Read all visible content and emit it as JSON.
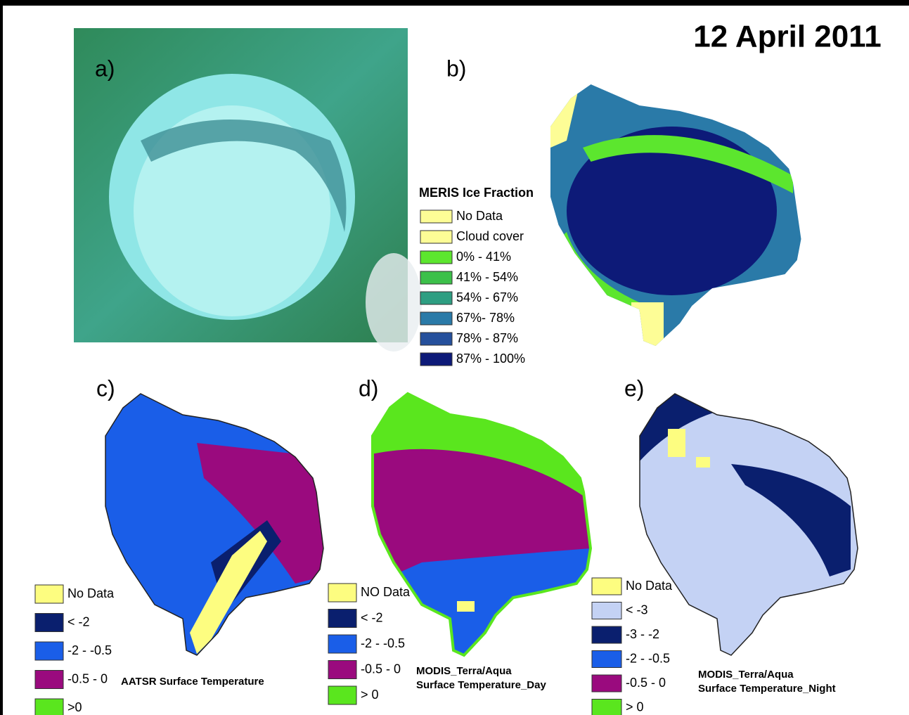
{
  "title": "12 April 2011",
  "panels": [
    {
      "label": "a)"
    },
    {
      "label": "b)",
      "legend": {
        "title": "MERIS Ice Fraction",
        "items": [
          {
            "label": "No Data",
            "color": "#fdfd96"
          },
          {
            "label": "Cloud cover",
            "color": "#fdfd96"
          },
          {
            "label": "0% - 41%",
            "color": "#5ce62e"
          },
          {
            "label": "41% - 54%",
            "color": "#3cc04a"
          },
          {
            "label": "54% - 67%",
            "color": "#2e9e82"
          },
          {
            "label": "67%- 78%",
            "color": "#2a7aa8"
          },
          {
            "label": "78% - 87%",
            "color": "#25509c"
          },
          {
            "label": "87% - 100%",
            "color": "#0d1a78"
          }
        ]
      }
    },
    {
      "label": "c)",
      "caption": [
        "AATSR Surface Temperature"
      ],
      "legend": {
        "items": [
          {
            "label": "No Data",
            "color": "#fdfd80"
          },
          {
            "label": "< -2",
            "color": "#0a1f6e"
          },
          {
            "label": "-2 - -0.5",
            "color": "#1a5ee8"
          },
          {
            "label": "-0.5 - 0",
            "color": "#9a0a7e"
          },
          {
            "label": ">0",
            "color": "#5ae61e"
          }
        ]
      }
    },
    {
      "label": "d)",
      "caption": [
        "MODIS_Terra/Aqua",
        "Surface Temperature_Day"
      ],
      "legend": {
        "items": [
          {
            "label": "NO Data",
            "color": "#fdfd80"
          },
          {
            "label": "< -2",
            "color": "#0a1f6e"
          },
          {
            "label": "-2 - -0.5",
            "color": "#1a5ee8"
          },
          {
            "label": "-0.5 - 0",
            "color": "#9a0a7e"
          },
          {
            "label": "> 0",
            "color": "#5ae61e"
          }
        ]
      }
    },
    {
      "label": "e)",
      "caption": [
        "MODIS_Terra/Aqua",
        "Surface Temperature_Night"
      ],
      "legend": {
        "items": [
          {
            "label": "No Data",
            "color": "#fdfd80"
          },
          {
            "label": "< -3",
            "color": "#c4d2f4"
          },
          {
            "label": "-3 - -2",
            "color": "#0a1f6e"
          },
          {
            "label": "-2 - -0.5",
            "color": "#1a5ee8"
          },
          {
            "label": "-0.5 - 0",
            "color": "#9a0a7e"
          },
          {
            "label": "> 0",
            "color": "#5ae61e"
          }
        ]
      }
    }
  ]
}
